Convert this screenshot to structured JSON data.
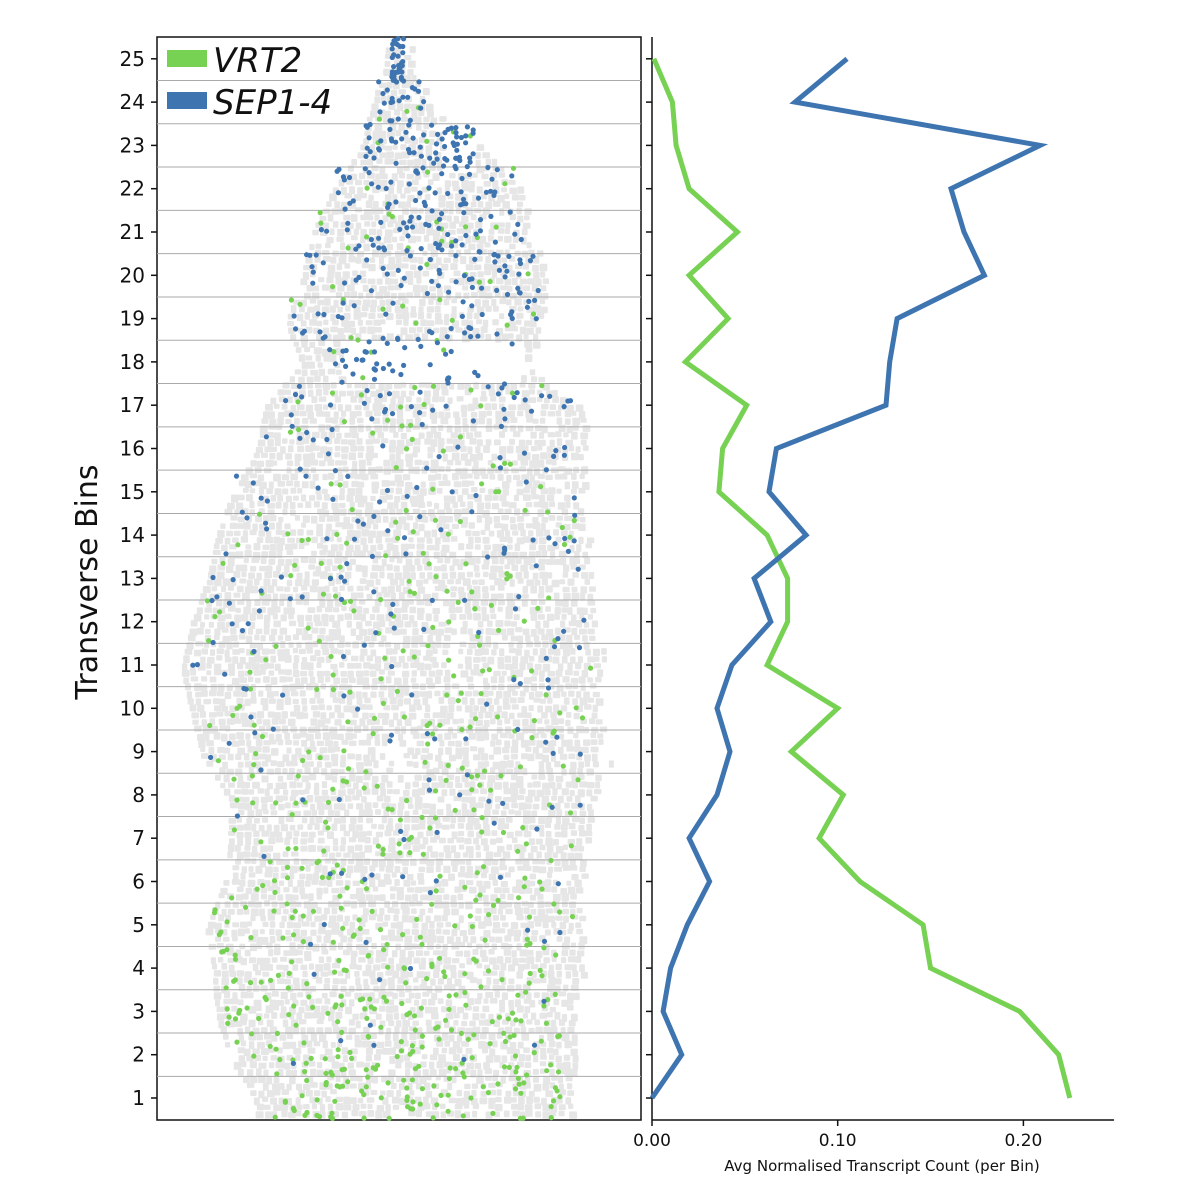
{
  "chart_data": {
    "type": "line",
    "ylabel": "Transverse Bins",
    "xlabel": "Avg Normalised Transcript Count (per Bin)",
    "y_ticks": [
      1,
      2,
      3,
      4,
      5,
      6,
      7,
      8,
      9,
      10,
      11,
      12,
      13,
      14,
      15,
      16,
      17,
      18,
      19,
      20,
      21,
      22,
      23,
      24,
      25
    ],
    "x_ticks": [
      0.0,
      0.1,
      0.2
    ],
    "x_tick_labels": [
      "0.00",
      "0.10",
      "0.20"
    ],
    "xlim": [
      0.0,
      0.25
    ],
    "ylim": [
      0.5,
      25.5
    ],
    "legend_placement": "top-left",
    "series": [
      {
        "name": "VRT2",
        "color": "#77d153",
        "bins": [
          1,
          2,
          3,
          4,
          5,
          6,
          7,
          8,
          9,
          10,
          11,
          12,
          13,
          14,
          15,
          16,
          17,
          18,
          19,
          20,
          21,
          22,
          23,
          24,
          25
        ],
        "values": [
          0.225,
          0.219,
          0.198,
          0.15,
          0.146,
          0.112,
          0.09,
          0.103,
          0.075,
          0.1,
          0.062,
          0.073,
          0.073,
          0.062,
          0.036,
          0.038,
          0.051,
          0.018,
          0.041,
          0.02,
          0.046,
          0.02,
          0.013,
          0.011,
          0.001
        ]
      },
      {
        "name": "SEP1-4",
        "color": "#3e75b0",
        "bins": [
          1,
          2,
          3,
          4,
          5,
          6,
          7,
          8,
          9,
          10,
          11,
          12,
          13,
          14,
          15,
          16,
          17,
          18,
          19,
          20,
          21,
          22,
          23,
          24,
          25
        ],
        "values": [
          0.0,
          0.016,
          0.006,
          0.01,
          0.019,
          0.031,
          0.02,
          0.035,
          0.042,
          0.035,
          0.043,
          0.064,
          0.055,
          0.083,
          0.063,
          0.067,
          0.126,
          0.128,
          0.132,
          0.179,
          0.168,
          0.161,
          0.209,
          0.077,
          0.105
        ]
      }
    ],
    "tissue": {
      "background_cell_color": "#e6e6e6",
      "vrt2_dot_color": "#77d153",
      "sep_dot_color": "#3e75b0"
    }
  }
}
